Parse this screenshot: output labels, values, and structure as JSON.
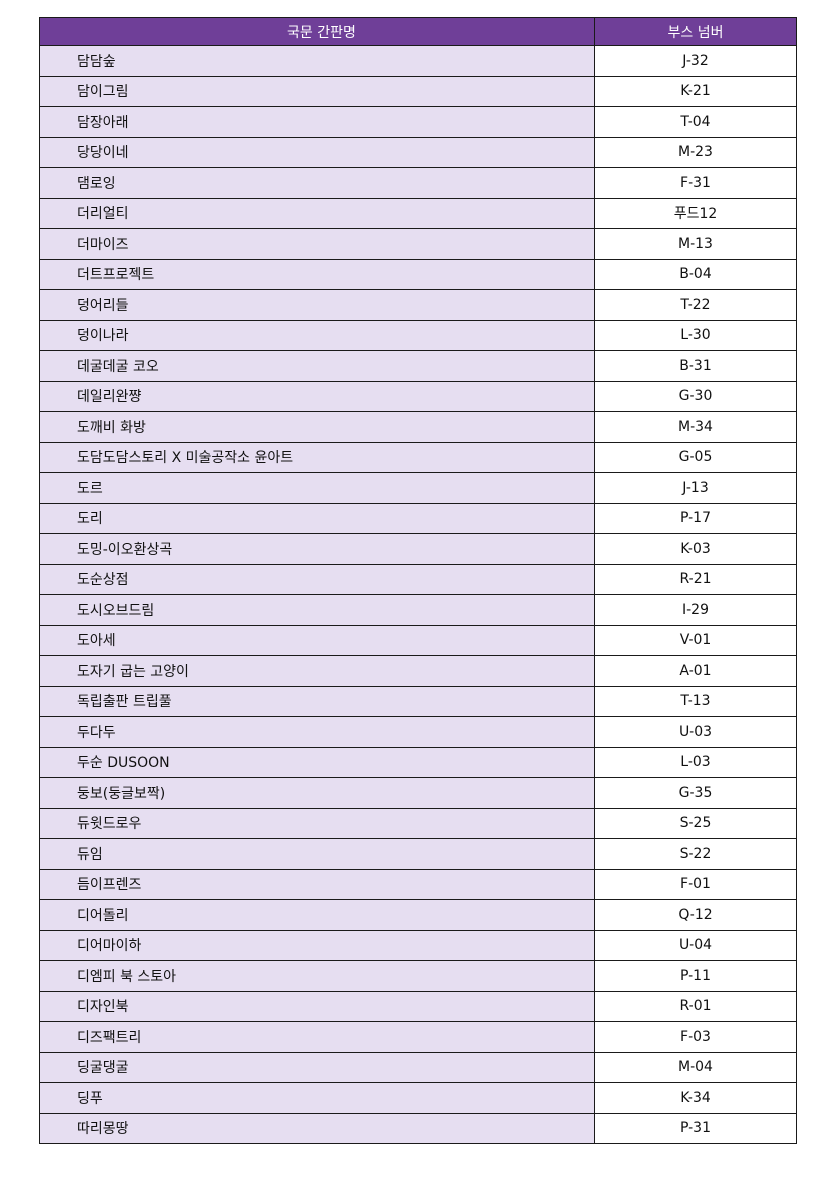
{
  "header": {
    "name_col": "국문 간판명",
    "booth_col": "부스 넘버"
  },
  "colors": {
    "header_bg": "#6f3f98",
    "name_cell_bg": "#e6def1"
  },
  "rows": [
    {
      "name": "담담숲",
      "booth": "J-32"
    },
    {
      "name": "담이그림",
      "booth": "K-21"
    },
    {
      "name": "담장아래",
      "booth": "T-04"
    },
    {
      "name": "당당이네",
      "booth": "M-23"
    },
    {
      "name": "댐로잉",
      "booth": "F-31"
    },
    {
      "name": "더리얼티",
      "booth": "푸드12"
    },
    {
      "name": "더마이즈",
      "booth": "M-13"
    },
    {
      "name": "더트프로젝트",
      "booth": "B-04"
    },
    {
      "name": "덩어리들",
      "booth": "T-22"
    },
    {
      "name": "덩이나라",
      "booth": "L-30"
    },
    {
      "name": "데굴데굴 코오",
      "booth": "B-31"
    },
    {
      "name": "데일리완쨩",
      "booth": "G-30"
    },
    {
      "name": "도깨비 화방",
      "booth": "M-34"
    },
    {
      "name": "도담도담스토리 X 미술공작소 윤아트",
      "booth": "G-05"
    },
    {
      "name": "도르",
      "booth": "J-13"
    },
    {
      "name": "도리",
      "booth": "P-17"
    },
    {
      "name": "도밍-이오환상곡",
      "booth": "K-03"
    },
    {
      "name": "도순상점",
      "booth": "R-21"
    },
    {
      "name": "도시오브드림",
      "booth": "I-29"
    },
    {
      "name": "도아세",
      "booth": "V-01"
    },
    {
      "name": "도자기 굽는 고양이",
      "booth": "A-01"
    },
    {
      "name": "독립출판 트립풀",
      "booth": "T-13"
    },
    {
      "name": "두다두",
      "booth": "U-03"
    },
    {
      "name": "두순 DUSOON",
      "booth": "L-03"
    },
    {
      "name": "둥보(둥글보짝)",
      "booth": "G-35"
    },
    {
      "name": "듀윗드로우",
      "booth": "S-25"
    },
    {
      "name": "듀임",
      "booth": "S-22"
    },
    {
      "name": "듬이프렌즈",
      "booth": "F-01"
    },
    {
      "name": "디어돌리",
      "booth": "Q-12"
    },
    {
      "name": "디어마이하",
      "booth": "U-04"
    },
    {
      "name": "디엠피 북 스토아",
      "booth": "P-11"
    },
    {
      "name": "디자인북",
      "booth": "R-01"
    },
    {
      "name": "디즈팩트리",
      "booth": "F-03"
    },
    {
      "name": "딩굴댕굴",
      "booth": "M-04"
    },
    {
      "name": "딩푸",
      "booth": "K-34"
    },
    {
      "name": "따리몽땅",
      "booth": "P-31"
    }
  ]
}
